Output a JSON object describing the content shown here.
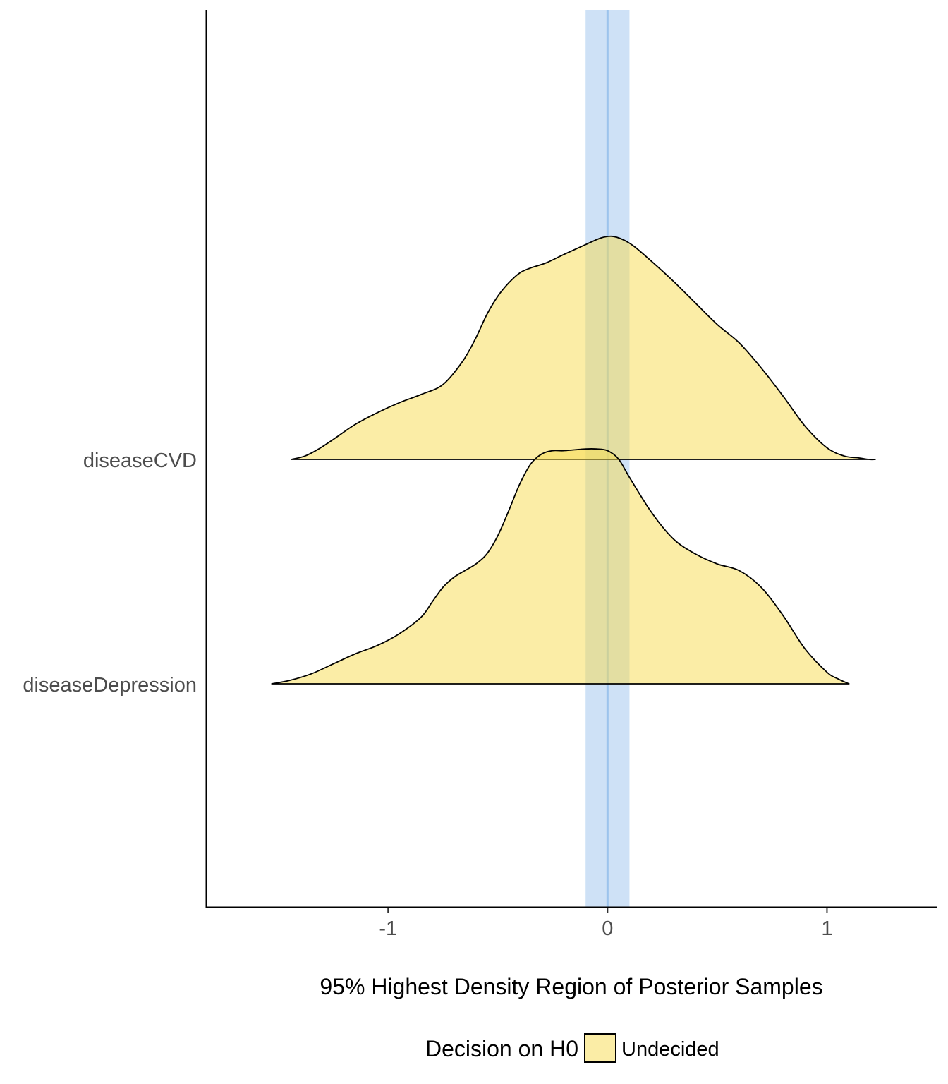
{
  "chart_data": {
    "type": "ridgeline",
    "title": "",
    "xlabel": "95% Highest Density Region of Posterior Samples",
    "ylabel": "",
    "xlim": [
      -1.83,
      1.5
    ],
    "x_ticks": [
      -1,
      0,
      1
    ],
    "x_tick_labels": [
      "-1",
      "0",
      "1"
    ],
    "categories": [
      "diseaseCVD",
      "diseaseDepression"
    ],
    "rope": {
      "lower": -0.1,
      "upper": 0.1,
      "center": 0,
      "color": "#a5c8ef",
      "line_color": "#9cc3ec"
    },
    "legend": {
      "title": "Decision on H0",
      "position": "bottom",
      "entries": [
        {
          "label": "Undecided",
          "color": "#f8db4d"
        }
      ]
    },
    "series": [
      {
        "category": "diseaseCVD",
        "decision": "Undecided",
        "x": [
          -1.44,
          -1.38,
          -1.32,
          -1.25,
          -1.15,
          -1.05,
          -0.95,
          -0.85,
          -0.75,
          -0.66,
          -0.6,
          -0.55,
          -0.5,
          -0.45,
          -0.4,
          -0.35,
          -0.28,
          -0.2,
          -0.1,
          -0.03,
          0.02,
          0.07,
          0.12,
          0.2,
          0.3,
          0.4,
          0.5,
          0.6,
          0.7,
          0.8,
          0.9,
          1.0,
          1.08,
          1.14,
          1.19,
          1.22
        ],
        "density": [
          0.0,
          0.02,
          0.06,
          0.12,
          0.21,
          0.28,
          0.34,
          0.39,
          0.45,
          0.59,
          0.73,
          0.87,
          0.98,
          1.06,
          1.12,
          1.15,
          1.18,
          1.23,
          1.29,
          1.33,
          1.34,
          1.32,
          1.28,
          1.19,
          1.07,
          0.94,
          0.81,
          0.7,
          0.55,
          0.38,
          0.2,
          0.07,
          0.02,
          0.01,
          0.0,
          0.0
        ]
      },
      {
        "category": "diseaseDepression",
        "decision": "Undecided",
        "x": [
          -1.53,
          -1.45,
          -1.35,
          -1.25,
          -1.15,
          -1.05,
          -0.95,
          -0.85,
          -0.8,
          -0.75,
          -0.7,
          -0.65,
          -0.6,
          -0.55,
          -0.5,
          -0.45,
          -0.4,
          -0.35,
          -0.3,
          -0.25,
          -0.2,
          -0.1,
          -0.05,
          0.0,
          0.05,
          0.1,
          0.2,
          0.3,
          0.4,
          0.5,
          0.6,
          0.7,
          0.8,
          0.9,
          1.0,
          1.05,
          1.1
        ],
        "density": [
          0.0,
          0.02,
          0.06,
          0.12,
          0.18,
          0.23,
          0.3,
          0.4,
          0.49,
          0.58,
          0.64,
          0.68,
          0.72,
          0.78,
          0.89,
          1.04,
          1.2,
          1.32,
          1.38,
          1.4,
          1.4,
          1.41,
          1.41,
          1.4,
          1.35,
          1.24,
          1.03,
          0.87,
          0.78,
          0.72,
          0.68,
          0.58,
          0.41,
          0.21,
          0.07,
          0.03,
          0.0
        ]
      }
    ]
  }
}
